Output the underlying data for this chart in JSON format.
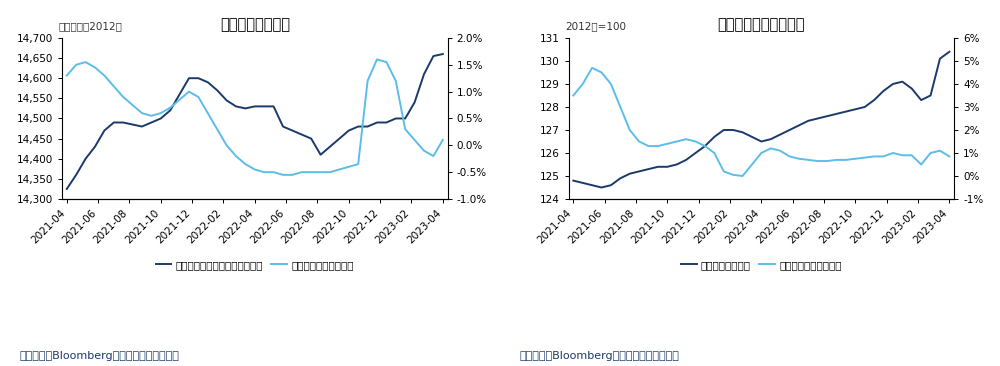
{
  "chart1": {
    "title": "收入增速缓慢回升",
    "ylabel_left": "十亿美元，2012年",
    "ylim_left": [
      14300,
      14700
    ],
    "ylim_right": [
      -1.0,
      2.0
    ],
    "yticks_left": [
      14300,
      14350,
      14400,
      14450,
      14500,
      14550,
      14600,
      14650,
      14700
    ],
    "yticks_right": [
      -1.0,
      -0.5,
      0.0,
      0.5,
      1.0,
      1.5,
      2.0
    ],
    "legend1": "扣除转移支付后的个人实际收入",
    "legend2": "三个月环比增速（右）",
    "source": "数据来源：Bloomberg，国泰君安证券研究。",
    "color_dark": "#1b3a6b",
    "color_light": "#5bbde8",
    "x_labels": [
      "2021-04",
      "2021-06",
      "2021-08",
      "2021-10",
      "2021-12",
      "2022-02",
      "2022-04",
      "2022-06",
      "2022-08",
      "2022-10",
      "2022-12",
      "2023-02",
      "2023-04"
    ],
    "line1_x": [
      0,
      1,
      2,
      3,
      4,
      5,
      6,
      7,
      8,
      9,
      10,
      11,
      12,
      13,
      14,
      15,
      16,
      17,
      18,
      19,
      20,
      21,
      22,
      23,
      24,
      25,
      26,
      27,
      28,
      29,
      30,
      31,
      32,
      33,
      34,
      35,
      36,
      37,
      38,
      39,
      40
    ],
    "line1_y": [
      14325,
      14360,
      14400,
      14430,
      14470,
      14490,
      14490,
      14485,
      14480,
      14490,
      14500,
      14520,
      14560,
      14600,
      14600,
      14590,
      14570,
      14545,
      14530,
      14525,
      14530,
      14530,
      14530,
      14480,
      14470,
      14460,
      14450,
      14410,
      14430,
      14450,
      14470,
      14480,
      14480,
      14490,
      14490,
      14500,
      14500,
      14540,
      14610,
      14655,
      14660
    ],
    "line2_x": [
      0,
      1,
      2,
      3,
      4,
      5,
      6,
      7,
      8,
      9,
      10,
      11,
      12,
      13,
      14,
      15,
      16,
      17,
      18,
      19,
      20,
      21,
      22,
      23,
      24,
      25,
      26,
      27,
      28,
      29,
      30,
      31,
      32,
      33,
      34,
      35,
      36,
      37,
      38,
      39,
      40
    ],
    "line2_y": [
      1.3,
      1.5,
      1.55,
      1.45,
      1.3,
      1.1,
      0.9,
      0.75,
      0.6,
      0.55,
      0.6,
      0.7,
      0.85,
      1.0,
      0.9,
      0.6,
      0.3,
      0.0,
      -0.2,
      -0.35,
      -0.45,
      -0.5,
      -0.5,
      -0.55,
      -0.55,
      -0.5,
      -0.5,
      -0.5,
      -0.5,
      -0.45,
      -0.4,
      -0.35,
      1.2,
      1.6,
      1.55,
      1.2,
      0.3,
      0.1,
      -0.1,
      -0.2,
      0.1
    ],
    "n_points": 41
  },
  "chart2": {
    "title": "消费整体仍在继续扩张",
    "ylabel_left": "2012年=100",
    "ylim_left": [
      124,
      131
    ],
    "ylim_right": [
      -1.0,
      6.0
    ],
    "yticks_left": [
      124,
      125,
      126,
      127,
      128,
      129,
      130,
      131
    ],
    "yticks_right": [
      -1,
      0,
      1,
      2,
      3,
      4,
      5,
      6
    ],
    "legend1": "个人实际消费支出",
    "legend2": "三个月环比增速（右）",
    "source": "数据来源：Bloomberg，国泰君安证券研究。",
    "color_dark": "#1b3a6b",
    "color_light": "#5bbde8",
    "x_labels": [
      "2021-04",
      "2021-06",
      "2021-08",
      "2021-10",
      "2021-12",
      "2022-02",
      "2022-04",
      "2022-06",
      "2022-08",
      "2022-10",
      "2022-12",
      "2023-02",
      "2023-04"
    ],
    "line1_x": [
      0,
      1,
      2,
      3,
      4,
      5,
      6,
      7,
      8,
      9,
      10,
      11,
      12,
      13,
      14,
      15,
      16,
      17,
      18,
      19,
      20,
      21,
      22,
      23,
      24,
      25,
      26,
      27,
      28,
      29,
      30,
      31,
      32,
      33,
      34,
      35,
      36,
      37,
      38,
      39,
      40
    ],
    "line1_y": [
      124.8,
      124.7,
      124.6,
      124.5,
      124.6,
      124.9,
      125.1,
      125.2,
      125.3,
      125.4,
      125.4,
      125.5,
      125.7,
      126.0,
      126.3,
      126.7,
      127.0,
      127.0,
      126.9,
      126.7,
      126.5,
      126.6,
      126.8,
      127.0,
      127.2,
      127.4,
      127.5,
      127.6,
      127.7,
      127.8,
      127.9,
      128.0,
      128.3,
      128.7,
      129.0,
      129.1,
      128.8,
      128.3,
      128.5,
      130.1,
      130.4
    ],
    "line2_x": [
      0,
      1,
      2,
      3,
      4,
      5,
      6,
      7,
      8,
      9,
      10,
      11,
      12,
      13,
      14,
      15,
      16,
      17,
      18,
      19,
      20,
      21,
      22,
      23,
      24,
      25,
      26,
      27,
      28,
      29,
      30,
      31,
      32,
      33,
      34,
      35,
      36,
      37,
      38,
      39,
      40
    ],
    "line2_y": [
      3.5,
      4.0,
      4.7,
      4.5,
      4.0,
      3.0,
      2.0,
      1.5,
      1.3,
      1.3,
      1.4,
      1.5,
      1.6,
      1.5,
      1.3,
      1.0,
      0.2,
      0.05,
      0.0,
      0.5,
      1.0,
      1.2,
      1.1,
      0.85,
      0.75,
      0.7,
      0.65,
      0.65,
      0.7,
      0.7,
      0.75,
      0.8,
      0.85,
      0.85,
      1.0,
      0.9,
      0.9,
      0.5,
      1.0,
      1.1,
      0.85
    ],
    "n_points": 41
  }
}
